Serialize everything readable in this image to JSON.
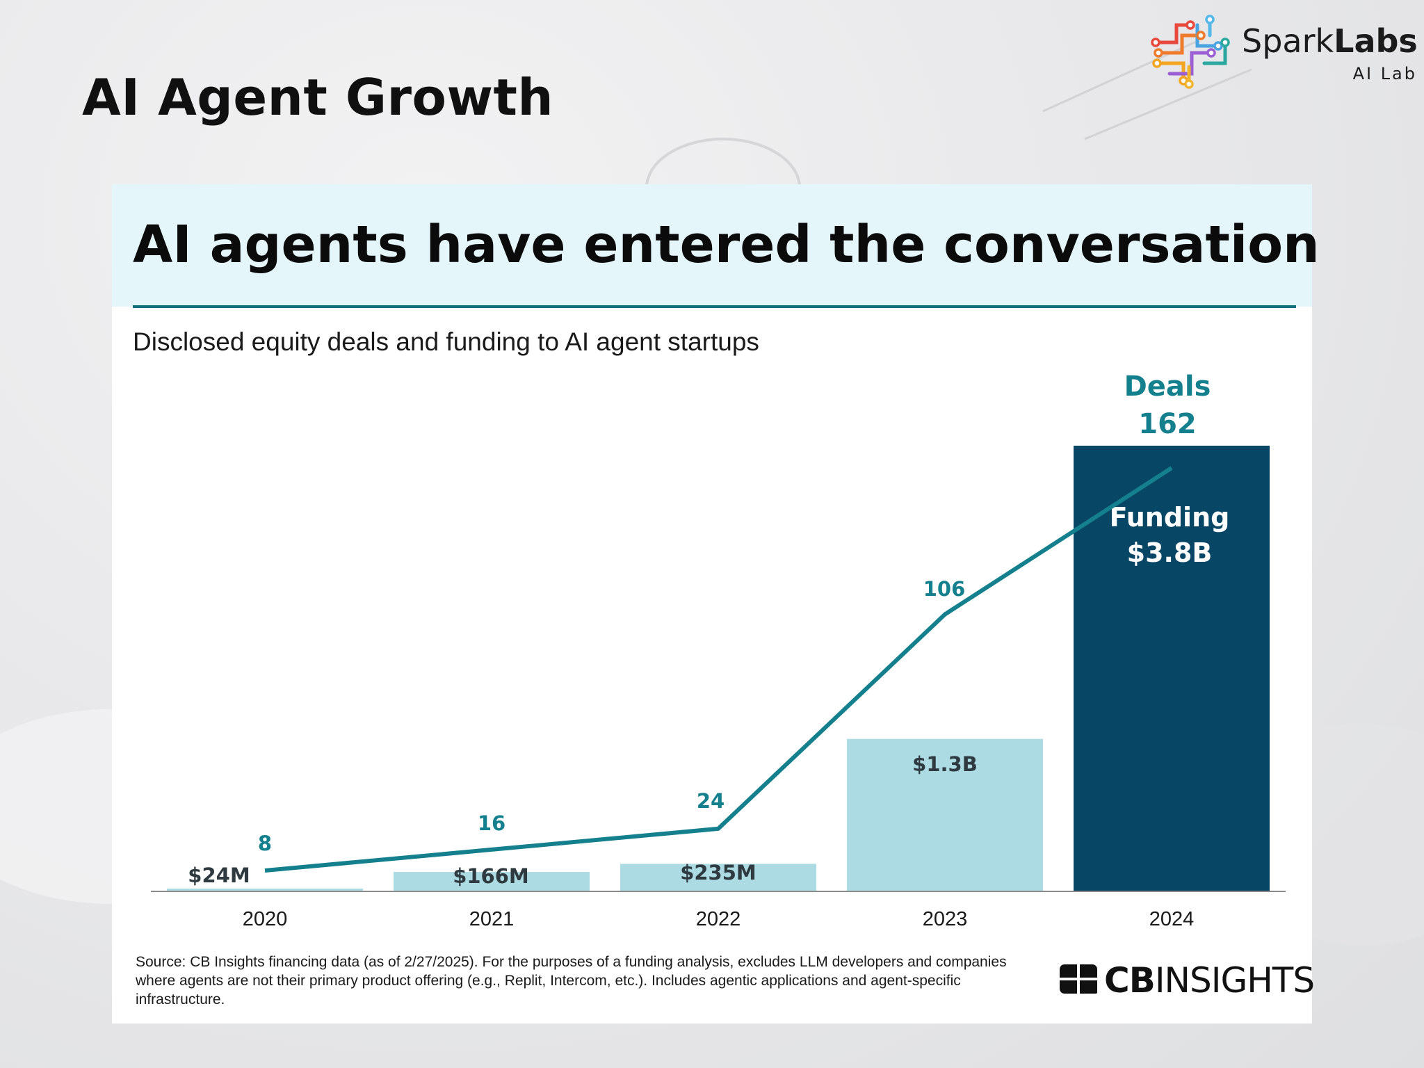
{
  "slide": {
    "title": "AI Agent Growth",
    "logo": {
      "brand_regular": "Spark",
      "brand_bold": "Labs",
      "sub": "AI Lab"
    }
  },
  "card": {
    "title": "AI agents have entered the conversation",
    "subtitle": "Disclosed equity deals and funding to AI agent startups",
    "source": "Source: CB Insights financing data (as of 2/27/2025). For the purposes of a funding analysis, excludes LLM developers and companies where agents are not their primary product offering (e.g., Replit, Intercom, etc.). Includes agentic applications and agent-specific infrastructure.",
    "cb_logo": {
      "bold": "CB",
      "regular": "INSIGHTS"
    }
  },
  "colors": {
    "bar_light": "#acdbe4",
    "bar_dark": "#074664",
    "line": "#14808e",
    "accent_rule": "#12707e",
    "header_bg": "#e5f6fb"
  },
  "chart_data": {
    "type": "bar",
    "categories": [
      "2020",
      "2021",
      "2022",
      "2023",
      "2024"
    ],
    "series": [
      {
        "name": "Funding",
        "type": "bar",
        "values": [
          24,
          166,
          235,
          1300,
          3800
        ],
        "unit": "$M",
        "labels": [
          "$24M",
          "$166M",
          "$235M",
          "$1.3B",
          "$3.8B"
        ]
      },
      {
        "name": "Deals",
        "type": "line",
        "values": [
          8,
          16,
          24,
          106,
          162
        ],
        "labels": [
          "8",
          "16",
          "24",
          "106",
          "162"
        ]
      }
    ],
    "annotations": {
      "deals_header": "Deals",
      "funding_header": "Funding"
    },
    "title": "AI agents have entered the conversation",
    "subtitle": "Disclosed equity deals and funding to AI agent startups",
    "grid": false
  }
}
